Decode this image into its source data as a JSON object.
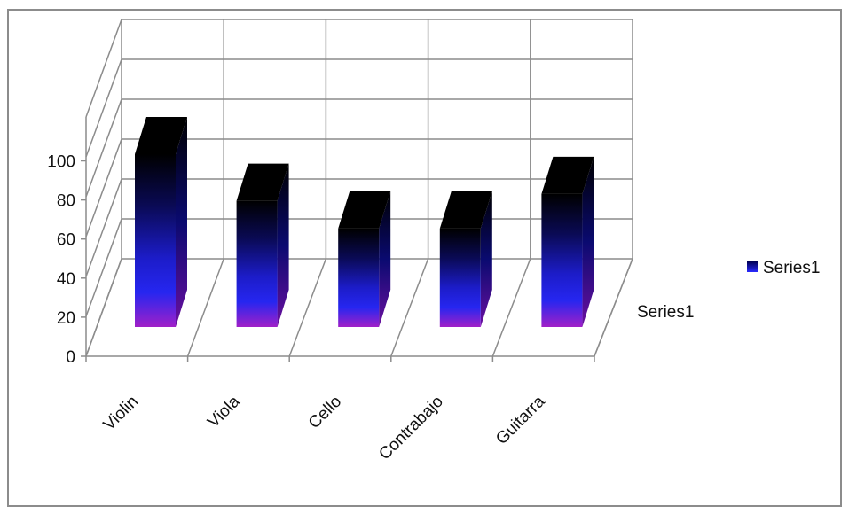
{
  "chart_data": {
    "type": "bar",
    "style": "3d-column",
    "categories": [
      "Violin",
      "Viola",
      "Cello",
      "Contrabajo",
      "Guitarra"
    ],
    "series": [
      {
        "name": "Series1",
        "values": [
          100,
          73,
          57,
          57,
          77
        ]
      }
    ],
    "yticks": [
      0,
      20,
      40,
      60,
      80,
      100
    ],
    "ylim": [
      0,
      120
    ],
    "depth_axis_label": "Series1",
    "grid": true,
    "legend": {
      "position": "right",
      "entries": [
        "Series1"
      ]
    },
    "colors": {
      "bar_top": "#000000",
      "bar_mid": "#1a1aa0",
      "bar_low": "#2a2aff",
      "bar_bottom": "#9a20c8",
      "grid": "#8c8c8c"
    }
  }
}
